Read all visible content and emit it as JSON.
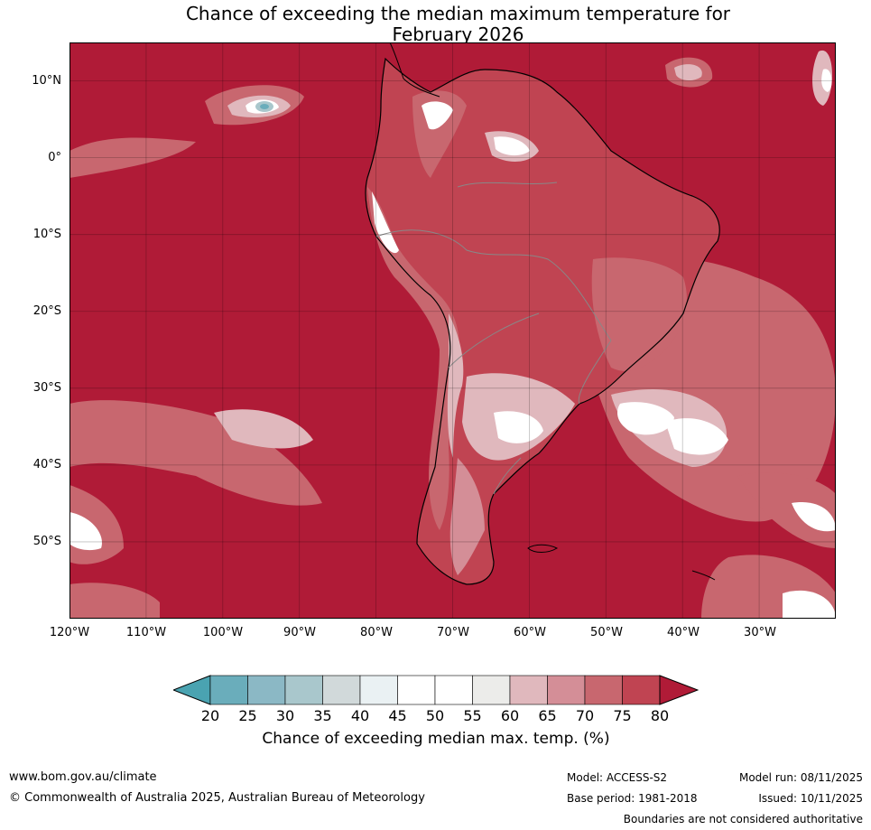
{
  "title_line1": "Chance of exceeding the median maximum temperature for",
  "title_line2": "February 2026",
  "lat_labels": [
    "10°N",
    "0°",
    "10°S",
    "20°S",
    "30°S",
    "40°S",
    "50°S"
  ],
  "lon_labels": [
    "120°W",
    "110°W",
    "100°W",
    "90°W",
    "80°W",
    "70°W",
    "60°W",
    "50°W",
    "40°W",
    "30°W"
  ],
  "map": {
    "lat_values": [
      10,
      0,
      -10,
      -20,
      -30,
      -40,
      -50
    ],
    "lon_values": [
      -120,
      -110,
      -100,
      -90,
      -80,
      -70,
      -60,
      -50,
      -40,
      -30
    ],
    "lon_range": [
      -120,
      -20
    ],
    "lat_range": [
      -60,
      15
    ]
  },
  "colorbar": {
    "ticks": [
      "20",
      "25",
      "30",
      "35",
      "40",
      "45",
      "50",
      "55",
      "60",
      "65",
      "70",
      "75",
      "80"
    ],
    "colors": {
      "below_20": "#4aa3b1",
      "20_25": "#6aadbb",
      "25_30": "#8bb8c5",
      "30_35": "#a9c7cc",
      "35_40": "#d1d9da",
      "40_45": "#eaf1f3",
      "45_50": "#ffffff",
      "50_55": "#ffffff",
      "55_60": "#ececea",
      "60_65": "#e0b8bd",
      "65_70": "#d48e97",
      "70_75": "#c8676f",
      "75_80": "#c04452",
      "above_80": "#b01b37"
    },
    "label": "Chance of exceeding median max. temp. (%)"
  },
  "footer": {
    "website": "www.bom.gov.au/climate",
    "copyright": "© Commonwealth of Australia 2025, Australian Bureau of Meteorology",
    "model": "Model: ACCESS-S2",
    "base_period": "Base period: 1981-2018",
    "model_run": "Model run: 08/11/2025",
    "issued": "Issued: 10/11/2025",
    "disclaimer": "Boundaries are not considered authoritative"
  }
}
